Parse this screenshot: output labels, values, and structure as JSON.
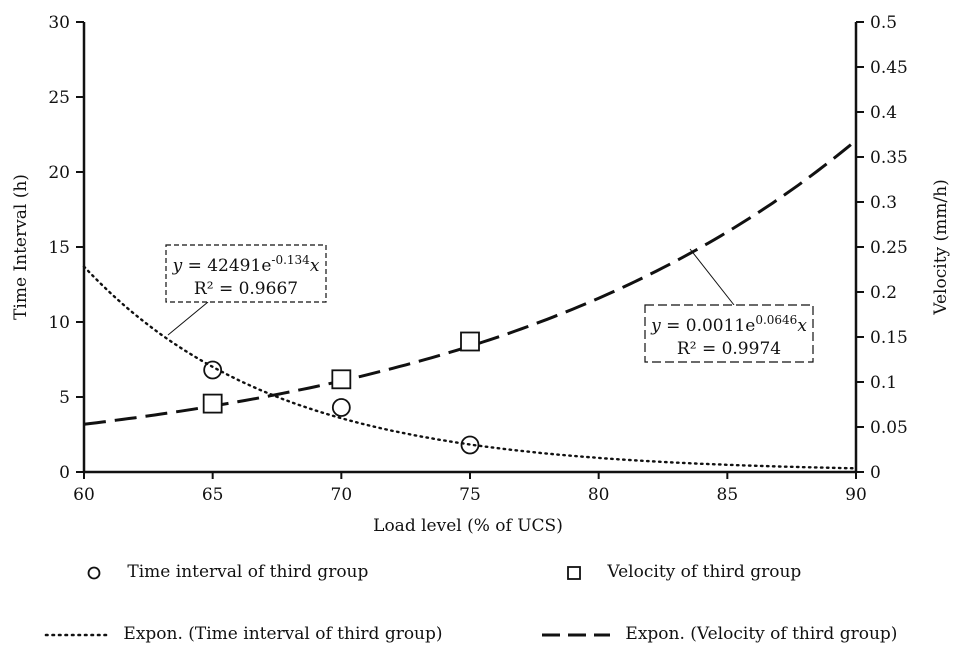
{
  "chart_data": {
    "type": "scatter",
    "xlabel": "Load level (% of UCS)",
    "ylabel": "Time Interval (h)",
    "y2label": "Velocity (mm/h)",
    "xlim": [
      60,
      90
    ],
    "ylim": [
      0,
      30
    ],
    "y2lim": [
      0,
      0.5
    ],
    "x_ticks": [
      "60",
      "65",
      "70",
      "75",
      "80",
      "85",
      "90"
    ],
    "y_ticks": [
      "0",
      "5",
      "10",
      "15",
      "20",
      "25",
      "30"
    ],
    "y2_ticks": [
      "0",
      "0.05",
      "0.1",
      "0.15",
      "0.2",
      "0.25",
      "0.3",
      "0.35",
      "0.4",
      "0.45",
      "0.5"
    ],
    "series": [
      {
        "name": "Time interval of third group",
        "axis": "left",
        "marker": "circle",
        "x": [
          65,
          70,
          75
        ],
        "y": [
          6.8,
          4.3,
          1.8
        ]
      },
      {
        "name": "Velocity of third group",
        "axis": "right",
        "marker": "square",
        "x": [
          65,
          70,
          75
        ],
        "y": [
          0.076,
          0.103,
          0.145
        ]
      }
    ],
    "trendlines": [
      {
        "name": "Expon. (Time interval of third group)",
        "axis": "left",
        "style": "dotted",
        "a": 42491,
        "b": -0.134,
        "eq_y": "y",
        "eq_lead": " = 42491e",
        "eq_exp": "-0.134",
        "eq_x": "x",
        "r2_label": "R² = 0.9667"
      },
      {
        "name": "Expon. (Velocity of third group)",
        "axis": "right",
        "style": "dashed",
        "a": 0.0011,
        "b": 0.0646,
        "eq_y": "y",
        "eq_lead": " = 0.0011e",
        "eq_exp": "0.0646",
        "eq_x": "x",
        "r2_label": "R² = 0.9974"
      }
    ],
    "grid": false,
    "legend_position": "bottom"
  }
}
